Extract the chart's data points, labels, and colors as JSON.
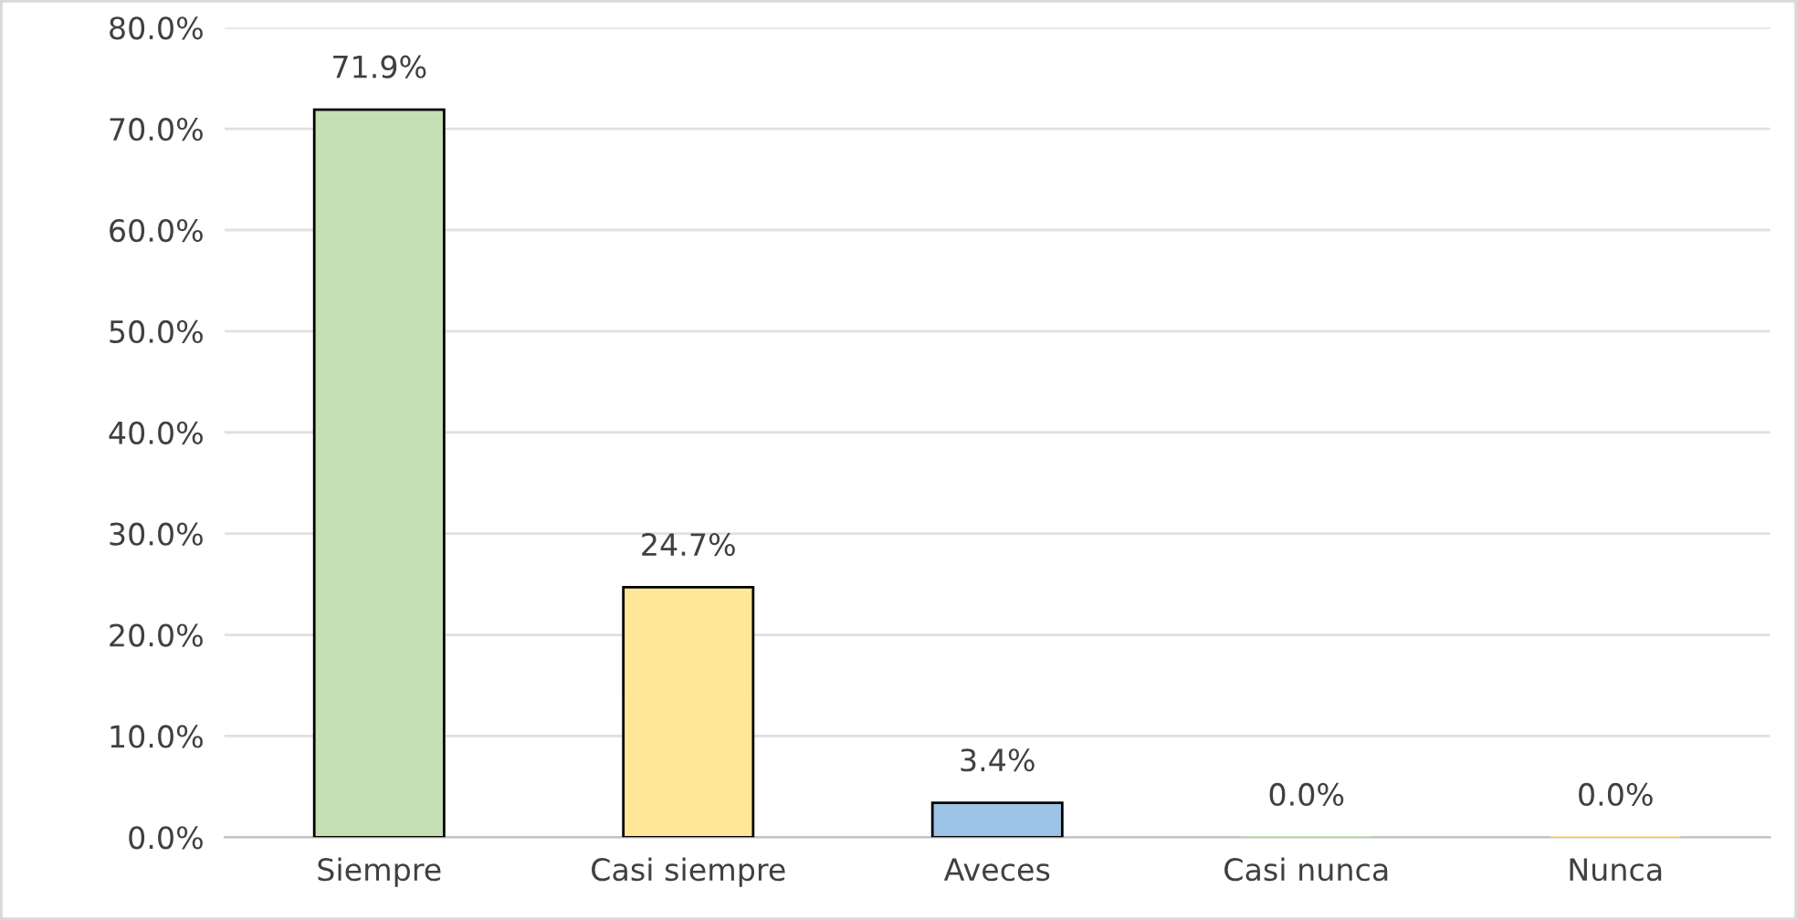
{
  "chart_data": {
    "type": "bar",
    "categories": [
      "Siempre",
      "Casi siempre",
      "Aveces",
      "Casi nunca",
      "Nunca"
    ],
    "values": [
      71.9,
      24.7,
      3.4,
      0.0,
      0.0
    ],
    "colors": [
      "#c5e0b4",
      "#ffe699",
      "#9dc3e6",
      "#c5e0b4",
      "#ffe699"
    ],
    "value_labels": [
      "71.9%",
      "24.7%",
      "3.4%",
      "0.0%",
      "0.0%"
    ],
    "ylim": [
      0,
      80
    ],
    "yticks": [
      {
        "value": 0,
        "label": "0.0%"
      },
      {
        "value": 10,
        "label": "10.0%"
      },
      {
        "value": 20,
        "label": "20.0%"
      },
      {
        "value": 30,
        "label": "30.0%"
      },
      {
        "value": 40,
        "label": "40.0%"
      },
      {
        "value": 50,
        "label": "50.0%"
      },
      {
        "value": 60,
        "label": "60.0%"
      },
      {
        "value": 70,
        "label": "70.0%"
      },
      {
        "value": 80,
        "label": "80.0%"
      }
    ],
    "grid": "y"
  }
}
